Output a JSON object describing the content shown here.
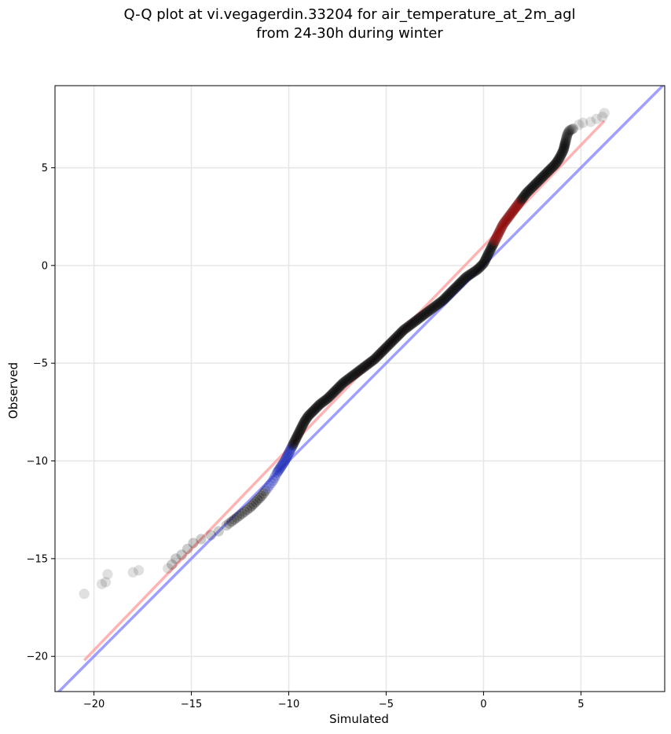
{
  "chart_data": {
    "type": "scatter",
    "title": "Q-Q plot at vi.vegagerdin.33204 for air_temperature_at_2m_agl",
    "subtitle": "from 24-30h during winter",
    "xlabel": "Simulated",
    "ylabel": "Observed",
    "xlim": [
      -22,
      9.3
    ],
    "ylim": [
      -21.8,
      9.2
    ],
    "xticks": [
      -20,
      -15,
      -10,
      -5,
      0,
      5
    ],
    "yticks": [
      -20,
      -15,
      -10,
      -5,
      0,
      5
    ],
    "x_tick_labels": [
      "−20",
      "−15",
      "−10",
      "−5",
      "0",
      "5"
    ],
    "y_tick_labels": [
      "−20",
      "−15",
      "−10",
      "−5",
      "0",
      "5"
    ],
    "grid": true,
    "reference_lines": [
      {
        "kind": "identity",
        "color": "#7f7fff",
        "from": [
          -22,
          -22
        ],
        "to": [
          9.3,
          9.3
        ]
      },
      {
        "kind": "fit",
        "color": "#ff9999",
        "from": [
          -20.5,
          -20.2
        ],
        "to": [
          6.2,
          7.4
        ]
      }
    ],
    "quantile_curve": [
      [
        -20.5,
        -16.8
      ],
      [
        -19.6,
        -16.3
      ],
      [
        -19.4,
        -16.2
      ],
      [
        -19.3,
        -15.8
      ],
      [
        -18.0,
        -15.7
      ],
      [
        -17.7,
        -15.6
      ],
      [
        -16.2,
        -15.5
      ],
      [
        -16.0,
        -15.3
      ],
      [
        -15.8,
        -15.0
      ],
      [
        -15.5,
        -14.8
      ],
      [
        -15.2,
        -14.5
      ],
      [
        -14.9,
        -14.2
      ],
      [
        -14.5,
        -14.0
      ],
      [
        -14.0,
        -13.8
      ],
      [
        -13.6,
        -13.6
      ],
      [
        -13.2,
        -13.3
      ],
      [
        -12.8,
        -13.0
      ],
      [
        -12.4,
        -12.7
      ],
      [
        -12.0,
        -12.4
      ],
      [
        -11.7,
        -12.1
      ],
      [
        -11.4,
        -11.8
      ],
      [
        -11.1,
        -11.4
      ],
      [
        -10.8,
        -11.0
      ],
      [
        -10.6,
        -10.6
      ],
      [
        -10.4,
        -10.3
      ],
      [
        -10.2,
        -10.0
      ],
      [
        -10.0,
        -9.6
      ],
      [
        -9.8,
        -9.2
      ],
      [
        -9.6,
        -8.8
      ],
      [
        -9.4,
        -8.4
      ],
      [
        -9.2,
        -8.0
      ],
      [
        -9.0,
        -7.7
      ],
      [
        -8.7,
        -7.4
      ],
      [
        -8.4,
        -7.1
      ],
      [
        -8.0,
        -6.8
      ],
      [
        -7.6,
        -6.4
      ],
      [
        -7.2,
        -6.0
      ],
      [
        -6.8,
        -5.7
      ],
      [
        -6.4,
        -5.4
      ],
      [
        -6.0,
        -5.1
      ],
      [
        -5.6,
        -4.8
      ],
      [
        -5.3,
        -4.5
      ],
      [
        -5.0,
        -4.2
      ],
      [
        -4.7,
        -3.9
      ],
      [
        -4.4,
        -3.6
      ],
      [
        -4.1,
        -3.3
      ],
      [
        -3.7,
        -3.0
      ],
      [
        -3.3,
        -2.7
      ],
      [
        -2.9,
        -2.4
      ],
      [
        -2.5,
        -2.1
      ],
      [
        -2.1,
        -1.8
      ],
      [
        -1.8,
        -1.5
      ],
      [
        -1.5,
        -1.2
      ],
      [
        -1.2,
        -0.9
      ],
      [
        -0.9,
        -0.6
      ],
      [
        -0.6,
        -0.4
      ],
      [
        -0.3,
        -0.2
      ],
      [
        0.0,
        0.1
      ],
      [
        0.2,
        0.5
      ],
      [
        0.4,
        0.9
      ],
      [
        0.6,
        1.3
      ],
      [
        0.8,
        1.7
      ],
      [
        1.0,
        2.1
      ],
      [
        1.3,
        2.5
      ],
      [
        1.6,
        2.9
      ],
      [
        1.9,
        3.3
      ],
      [
        2.2,
        3.7
      ],
      [
        2.5,
        4.0
      ],
      [
        2.8,
        4.3
      ],
      [
        3.1,
        4.6
      ],
      [
        3.4,
        4.9
      ],
      [
        3.7,
        5.2
      ],
      [
        3.9,
        5.5
      ],
      [
        4.1,
        5.9
      ],
      [
        4.2,
        6.3
      ],
      [
        4.3,
        6.7
      ],
      [
        4.4,
        6.9
      ],
      [
        4.6,
        7.0
      ],
      [
        4.9,
        7.2
      ],
      [
        5.1,
        7.3
      ],
      [
        5.5,
        7.35
      ],
      [
        5.8,
        7.5
      ],
      [
        6.1,
        7.6
      ],
      [
        6.2,
        7.8
      ]
    ],
    "point_colors": {
      "default": "#000000",
      "above_fit_tint": "#8b0000",
      "near_identity_tint": "#1f2fbf"
    }
  }
}
